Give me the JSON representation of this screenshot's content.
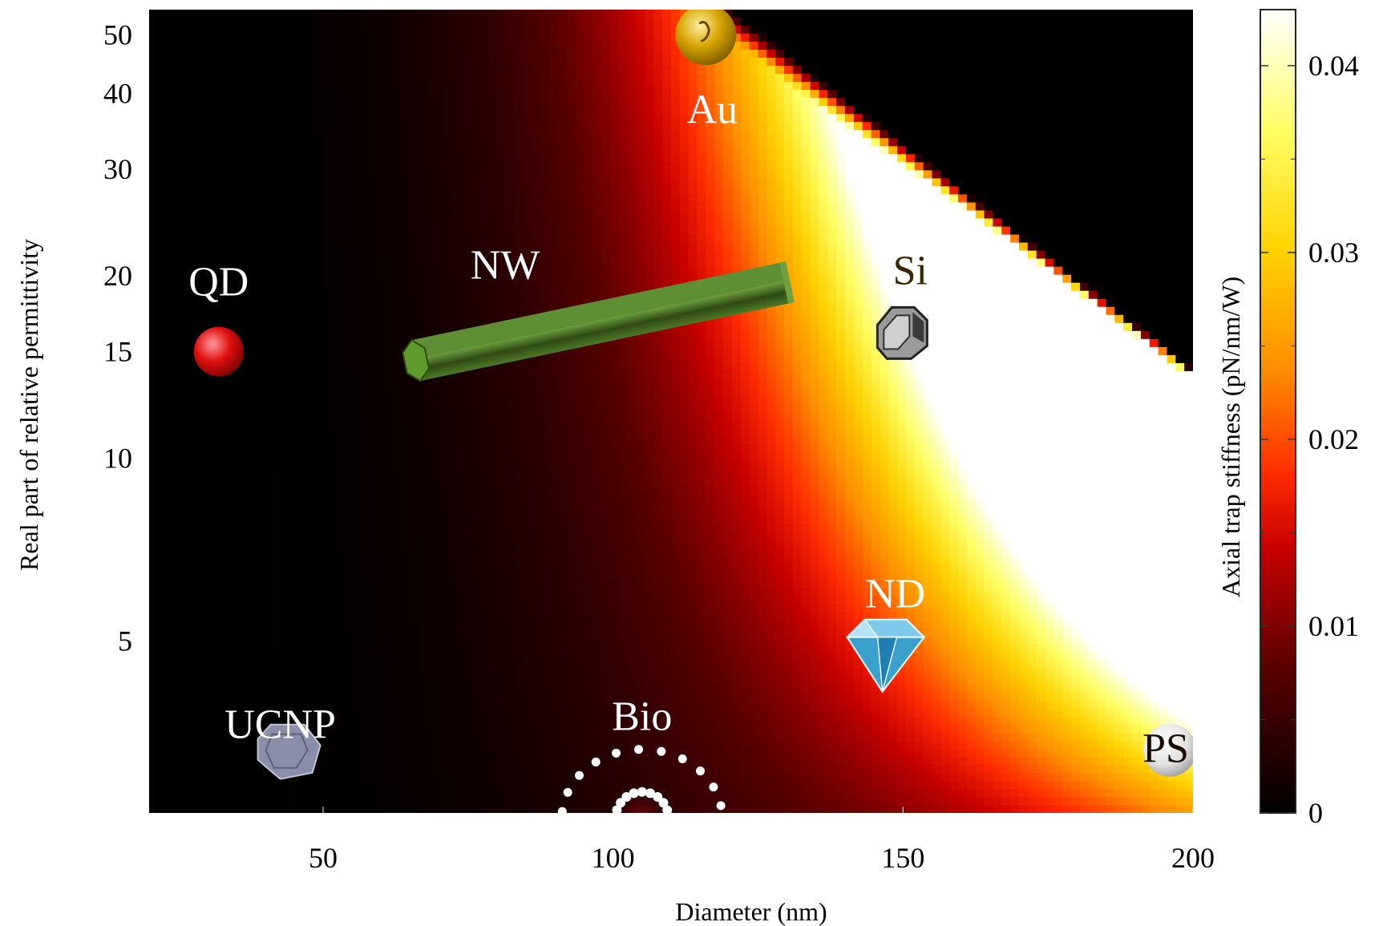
{
  "chart_data": {
    "type": "heatmap",
    "title": "",
    "xlabel": "Diameter (nm)",
    "ylabel": "Real part of relative permittivity",
    "x_scale": "linear",
    "y_scale": "log",
    "xlim": [
      20,
      200
    ],
    "ylim": [
      2.6,
      55
    ],
    "x_ticks": [
      {
        "value": 50,
        "label": "50"
      },
      {
        "value": 100,
        "label": "100"
      },
      {
        "value": 150,
        "label": "150"
      },
      {
        "value": 200,
        "label": "200"
      }
    ],
    "y_ticks": [
      {
        "value": 5,
        "label": "5"
      },
      {
        "value": 10,
        "label": "10"
      },
      {
        "value": 15,
        "label": "15"
      },
      {
        "value": 20,
        "label": "20"
      },
      {
        "value": 30,
        "label": "30"
      },
      {
        "value": 40,
        "label": "40"
      },
      {
        "value": 50,
        "label": "50"
      }
    ],
    "colorbar": {
      "label": "Axial trap stiffness (pN/nm/W)",
      "range": [
        0,
        0.043
      ],
      "ticks": [
        {
          "value": 0,
          "label": "0"
        },
        {
          "value": 0.01,
          "label": "0.01"
        },
        {
          "value": 0.02,
          "label": "0.02"
        },
        {
          "value": 0.03,
          "label": "0.03"
        },
        {
          "value": 0.04,
          "label": "0.04"
        }
      ],
      "colormap": [
        "#000000",
        "#5a0000",
        "#c80000",
        "#ff2a00",
        "#ff8c00",
        "#ffd200",
        "#ffff66",
        "#ffffff"
      ]
    },
    "annotations": [
      {
        "label": "QD",
        "x": 32,
        "y": 15,
        "icon": "red-sphere",
        "label_color": "#ffffff"
      },
      {
        "label": "NW",
        "x": 98,
        "y": 17,
        "icon": "green-nanowire",
        "label_color": "#ffffff",
        "x_start": 66,
        "y_start": 14.5,
        "x_end": 130,
        "y_end": 19.5
      },
      {
        "label": "Au",
        "x": 116,
        "y": 50,
        "icon": "gold-sphere",
        "label_color": "#ffffff"
      },
      {
        "label": "Si",
        "x": 150,
        "y": 16,
        "icon": "grey-crystal",
        "label_color": "#3a2800"
      },
      {
        "label": "ND",
        "x": 147,
        "y": 4.8,
        "icon": "diamond",
        "label_color": "#ffffff"
      },
      {
        "label": "Bio",
        "x": 105,
        "y": 3.3,
        "icon": "bio-vesicle",
        "label_color": "#ffffff"
      },
      {
        "label": "UCNP",
        "x": 44,
        "y": 3.3,
        "icon": "hexagonal-crystal",
        "label_color": "#ffffff"
      },
      {
        "label": "PS",
        "x": 196,
        "y": 3.3,
        "icon": "white-sphere",
        "label_color": "#1a0d00"
      }
    ],
    "grid": false,
    "legend": "colorbar-right"
  }
}
